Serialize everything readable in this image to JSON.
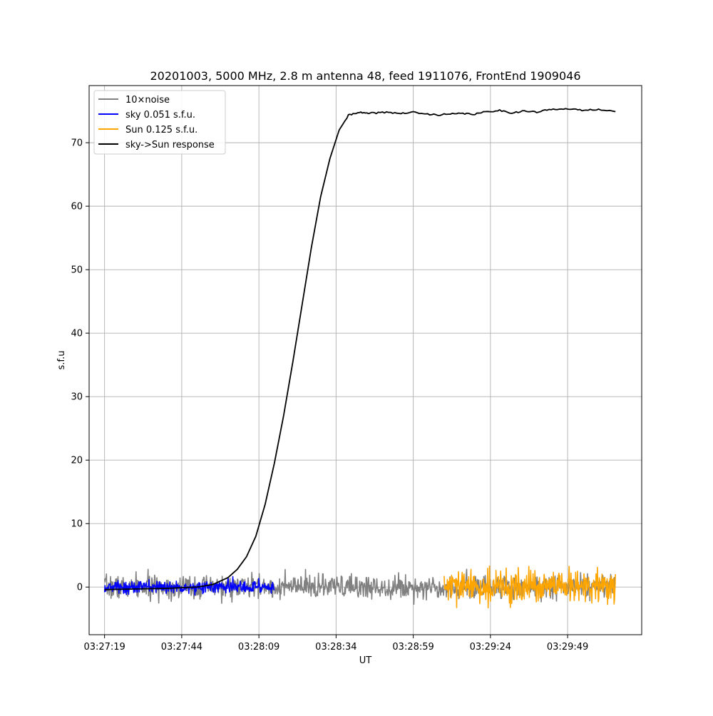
{
  "chart_data": {
    "type": "line",
    "title": "20201003, 5000 MHz, 2.8 m antenna 48, feed 1911076, FrontEnd 1909046",
    "xlabel": "UT",
    "ylabel": "s.f.u",
    "x_range_seconds": [
      -5,
      174
    ],
    "ylim": [
      -7.5,
      79
    ],
    "grid": true,
    "legend_position": "top-left",
    "x_ticks": [
      {
        "t": 0,
        "label": "03:27:19"
      },
      {
        "t": 25,
        "label": "03:27:44"
      },
      {
        "t": 50,
        "label": "03:28:09"
      },
      {
        "t": 75,
        "label": "03:28:34"
      },
      {
        "t": 100,
        "label": "03:28:59"
      },
      {
        "t": 125,
        "label": "03:29:24"
      },
      {
        "t": 150,
        "label": "03:29:49"
      }
    ],
    "y_ticks": [
      0,
      10,
      20,
      30,
      40,
      50,
      60,
      70
    ],
    "y_tick_labels": [
      "0",
      "10",
      "20",
      "30",
      "40",
      "50",
      "60",
      "70"
    ],
    "series": [
      {
        "name": "10×noise",
        "color": "#808080",
        "kind": "noise",
        "t_range": [
          0,
          165.5
        ],
        "amplitude": 0.9
      },
      {
        "name": "sky 0.051 s.f.u.",
        "color": "#0000ff",
        "kind": "noise",
        "t_range": [
          0,
          55
        ],
        "amplitude": 0.5
      },
      {
        "name": "Sun 0.125 s.f.u.",
        "color": "#ffa500",
        "kind": "noise",
        "t_range": [
          110,
          165.5
        ],
        "amplitude": 1.25
      },
      {
        "name": "sky->Sun response",
        "color": "#000000",
        "kind": "line",
        "x": [
          0,
          10,
          20,
          30,
          35,
          40,
          43,
          46,
          49,
          52,
          55,
          58,
          61,
          64,
          67,
          70,
          73,
          76,
          79,
          82,
          85,
          88,
          92,
          96,
          100,
          104,
          108,
          112,
          116,
          120,
          124,
          128,
          132,
          136,
          140,
          144,
          148,
          152,
          156,
          160,
          165.5
        ],
        "y": [
          -0.4,
          -0.3,
          -0.2,
          0.0,
          0.4,
          1.5,
          2.8,
          4.8,
          8.0,
          13.0,
          19.5,
          27.0,
          35.5,
          44.5,
          53.5,
          61.5,
          67.5,
          72.0,
          74.3,
          74.8,
          74.6,
          74.7,
          74.8,
          74.6,
          74.8,
          74.5,
          74.4,
          74.5,
          74.6,
          74.5,
          74.9,
          75.1,
          74.7,
          75.0,
          74.8,
          75.2,
          75.4,
          75.2,
          75.1,
          75.3,
          74.9
        ]
      }
    ]
  }
}
